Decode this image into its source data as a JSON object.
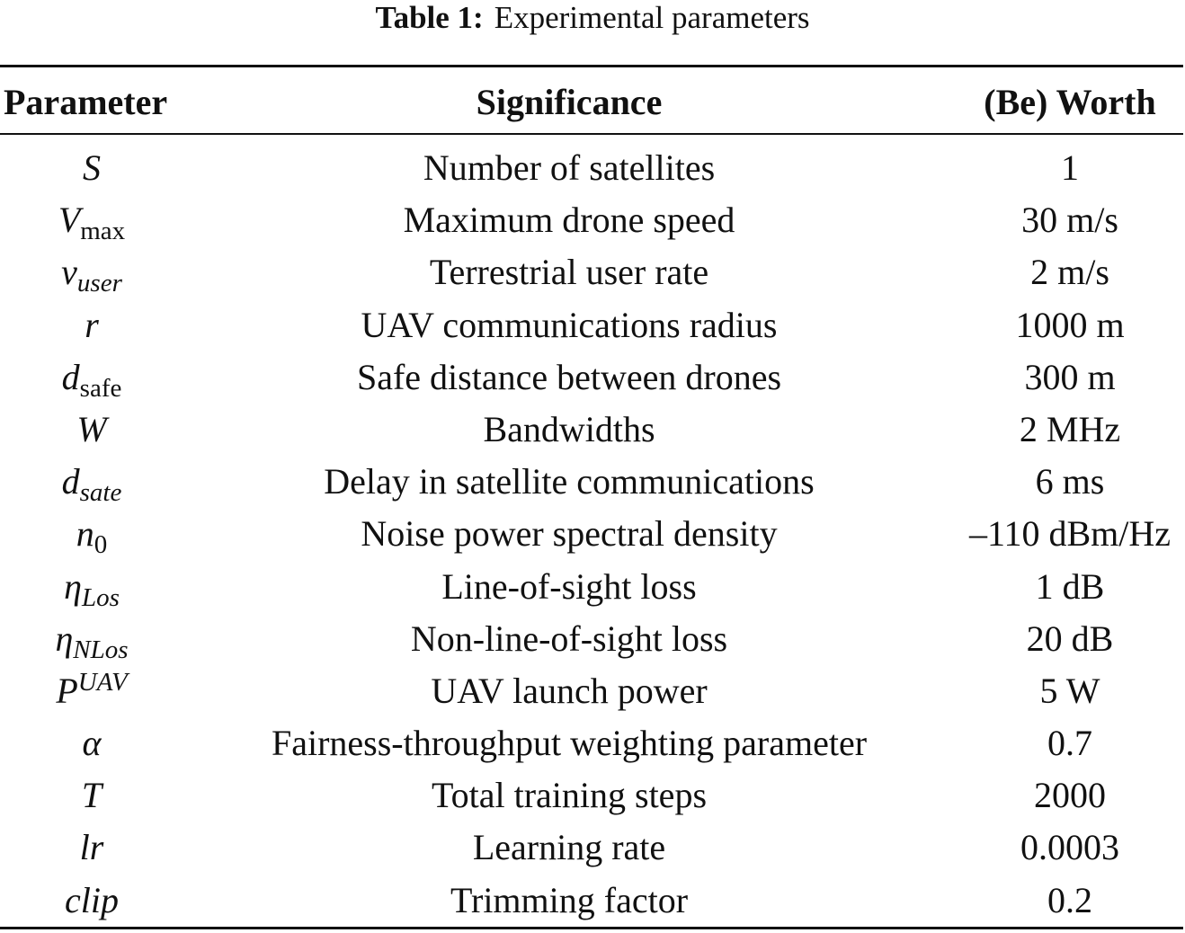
{
  "caption": {
    "label": "Table 1:",
    "text": "Experimental parameters"
  },
  "headers": {
    "parameter": "Parameter",
    "significance": "Significance",
    "worth": "(Be) Worth"
  },
  "rows": [
    {
      "sym": "S",
      "sub": "",
      "sup": "",
      "sub_upright": false,
      "significance": "Number of satellites",
      "value": "1"
    },
    {
      "sym": "V",
      "sub": "max",
      "sup": "",
      "sub_upright": true,
      "significance": "Maximum drone speed",
      "value": "30 m/s"
    },
    {
      "sym": "v",
      "sub": "user",
      "sup": "",
      "sub_upright": false,
      "significance": "Terrestrial user rate",
      "value": "2 m/s"
    },
    {
      "sym": "r",
      "sub": "",
      "sup": "",
      "sub_upright": false,
      "significance": "UAV communications radius",
      "value": "1000 m"
    },
    {
      "sym": "d",
      "sub": "safe",
      "sup": "",
      "sub_upright": true,
      "significance": "Safe distance between drones",
      "value": "300 m"
    },
    {
      "sym": "W",
      "sub": "",
      "sup": "",
      "sub_upright": false,
      "significance": "Bandwidths",
      "value": "2 MHz"
    },
    {
      "sym": "d",
      "sub": "sate",
      "sup": "",
      "sub_upright": false,
      "significance": "Delay in satellite communications",
      "value": "6 ms"
    },
    {
      "sym": "n",
      "sub": "0",
      "sup": "",
      "sub_upright": true,
      "significance": "Noise power spectral density",
      "value": "–110 dBm/Hz"
    },
    {
      "sym": "η",
      "sub": "Los",
      "sup": "",
      "sub_upright": false,
      "significance": "Line-of-sight loss",
      "value": "1 dB"
    },
    {
      "sym": "η",
      "sub": "NLos",
      "sup": "",
      "sub_upright": false,
      "significance": "Non-line-of-sight loss",
      "value": "20 dB"
    },
    {
      "sym": "P",
      "sub": "",
      "sup": "UAV",
      "sub_upright": false,
      "significance": "UAV launch power",
      "value": "5 W"
    },
    {
      "sym": "α",
      "sub": "",
      "sup": "",
      "sub_upright": false,
      "significance": "Fairness-throughput weighting parameter",
      "value": "0.7"
    },
    {
      "sym": "T",
      "sub": "",
      "sup": "",
      "sub_upright": false,
      "significance": "Total training steps",
      "value": "2000"
    },
    {
      "sym": "lr",
      "sub": "",
      "sup": "",
      "sub_upright": false,
      "significance": "Learning rate",
      "value": "0.0003"
    },
    {
      "sym": "clip",
      "sub": "",
      "sup": "",
      "sub_upright": false,
      "significance": "Trimming factor",
      "value": "0.2"
    }
  ]
}
